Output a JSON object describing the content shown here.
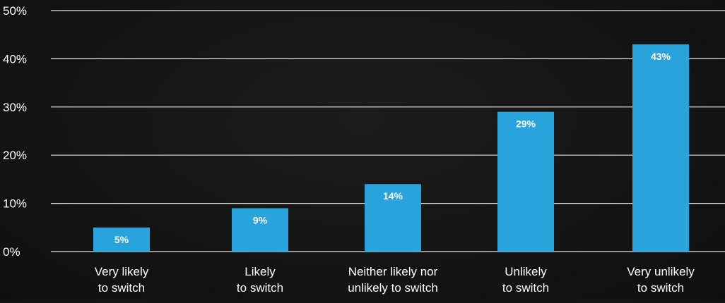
{
  "chart_data": {
    "type": "bar",
    "title": "",
    "xlabel": "",
    "ylabel": "",
    "categories": [
      [
        "Very likely",
        "to switch"
      ],
      [
        "Likely",
        "to switch"
      ],
      [
        "Neither likely nor",
        "unlikely to switch"
      ],
      [
        "Unlikely",
        "to switch"
      ],
      [
        "Very unlikely",
        "to switch"
      ]
    ],
    "values": [
      5,
      9,
      14,
      29,
      43
    ],
    "data_labels": [
      "5%",
      "9%",
      "14%",
      "29%",
      "43%"
    ],
    "ylim": [
      0,
      50
    ],
    "yticks": [
      0,
      10,
      20,
      30,
      40,
      50
    ],
    "ytick_labels": [
      "0%",
      "10%",
      "20%",
      "30%",
      "40%",
      "50%"
    ],
    "grid": true,
    "legend": "none",
    "colors": {
      "bar": "#29a3dc",
      "background": "#141414",
      "grid": "#e6e6e6",
      "text": "#ffffff"
    }
  }
}
